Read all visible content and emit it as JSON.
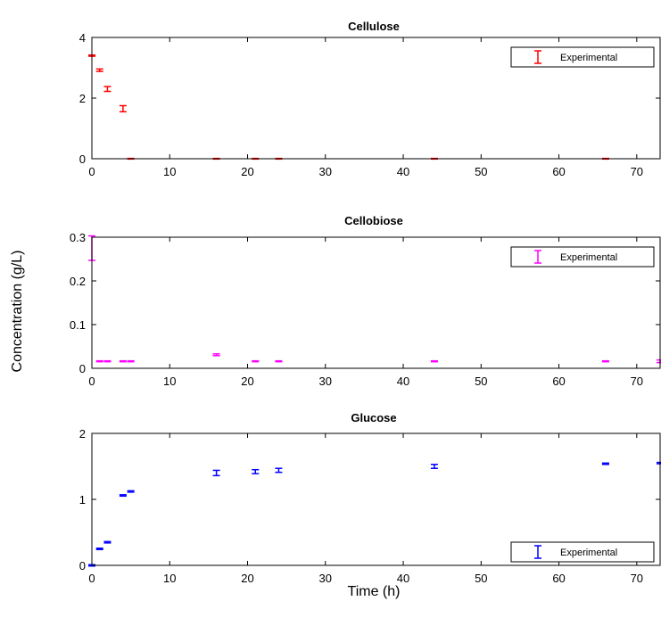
{
  "figure": {
    "ylabel": "Concentration (g/L)",
    "xlabel": "Time (h)"
  },
  "chart_data": [
    {
      "type": "scatter",
      "title": "Cellulose",
      "xlim": [
        0,
        73
      ],
      "ylim": [
        0,
        4
      ],
      "xticks": [
        0,
        10,
        20,
        30,
        40,
        50,
        60,
        70
      ],
      "yticks": [
        0,
        2,
        4
      ],
      "legend": {
        "label": "Experimental",
        "placement": "top-right"
      },
      "series": [
        {
          "name": "Experimental",
          "color": "#ff0000",
          "marker": "errorbar",
          "x": [
            0,
            1,
            2,
            4,
            5,
            16,
            21,
            24,
            44,
            66
          ],
          "y": [
            3.4,
            2.92,
            2.3,
            1.65,
            0.0,
            0.0,
            0.0,
            0.0,
            0.0,
            0.0
          ],
          "err": [
            0.02,
            0.04,
            0.08,
            0.1,
            0.01,
            0.01,
            0.01,
            0.01,
            0.01,
            0.01
          ]
        }
      ]
    },
    {
      "type": "scatter",
      "title": "Cellobiose",
      "xlim": [
        0,
        73
      ],
      "ylim": [
        0,
        0.3
      ],
      "xticks": [
        0,
        10,
        20,
        30,
        40,
        50,
        60,
        70
      ],
      "yticks": [
        0,
        0.1,
        0.2,
        0.3
      ],
      "legend": {
        "label": "Experimental",
        "placement": "top-right"
      },
      "series": [
        {
          "name": "Experimental",
          "color": "#ff00ff",
          "marker": "errorbar",
          "x": [
            0,
            1,
            2,
            4,
            5,
            16,
            21,
            24,
            44,
            66,
            73
          ],
          "y": [
            0.275,
            0.016,
            0.016,
            0.016,
            0.016,
            0.031,
            0.016,
            0.016,
            0.016,
            0.016,
            0.016
          ],
          "err": [
            0.028,
            0.001,
            0.001,
            0.001,
            0.001,
            0.002,
            0.001,
            0.001,
            0.001,
            0.001,
            0.003
          ]
        }
      ]
    },
    {
      "type": "scatter",
      "title": "Glucose",
      "xlim": [
        0,
        73
      ],
      "ylim": [
        0,
        2
      ],
      "xticks": [
        0,
        10,
        20,
        30,
        40,
        50,
        60,
        70
      ],
      "yticks": [
        0,
        1,
        2
      ],
      "legend": {
        "label": "Experimental",
        "placement": "bottom-right"
      },
      "series": [
        {
          "name": "Experimental",
          "color": "#0000ff",
          "marker": "errorbar",
          "x": [
            0,
            1,
            2,
            4,
            5,
            16,
            21,
            24,
            44,
            66,
            73
          ],
          "y": [
            0.0,
            0.25,
            0.35,
            1.06,
            1.12,
            1.4,
            1.42,
            1.44,
            1.5,
            1.54,
            1.55
          ],
          "err": [
            0.01,
            0.01,
            0.01,
            0.01,
            0.01,
            0.04,
            0.03,
            0.03,
            0.03,
            0.01,
            0.01
          ]
        }
      ]
    }
  ]
}
